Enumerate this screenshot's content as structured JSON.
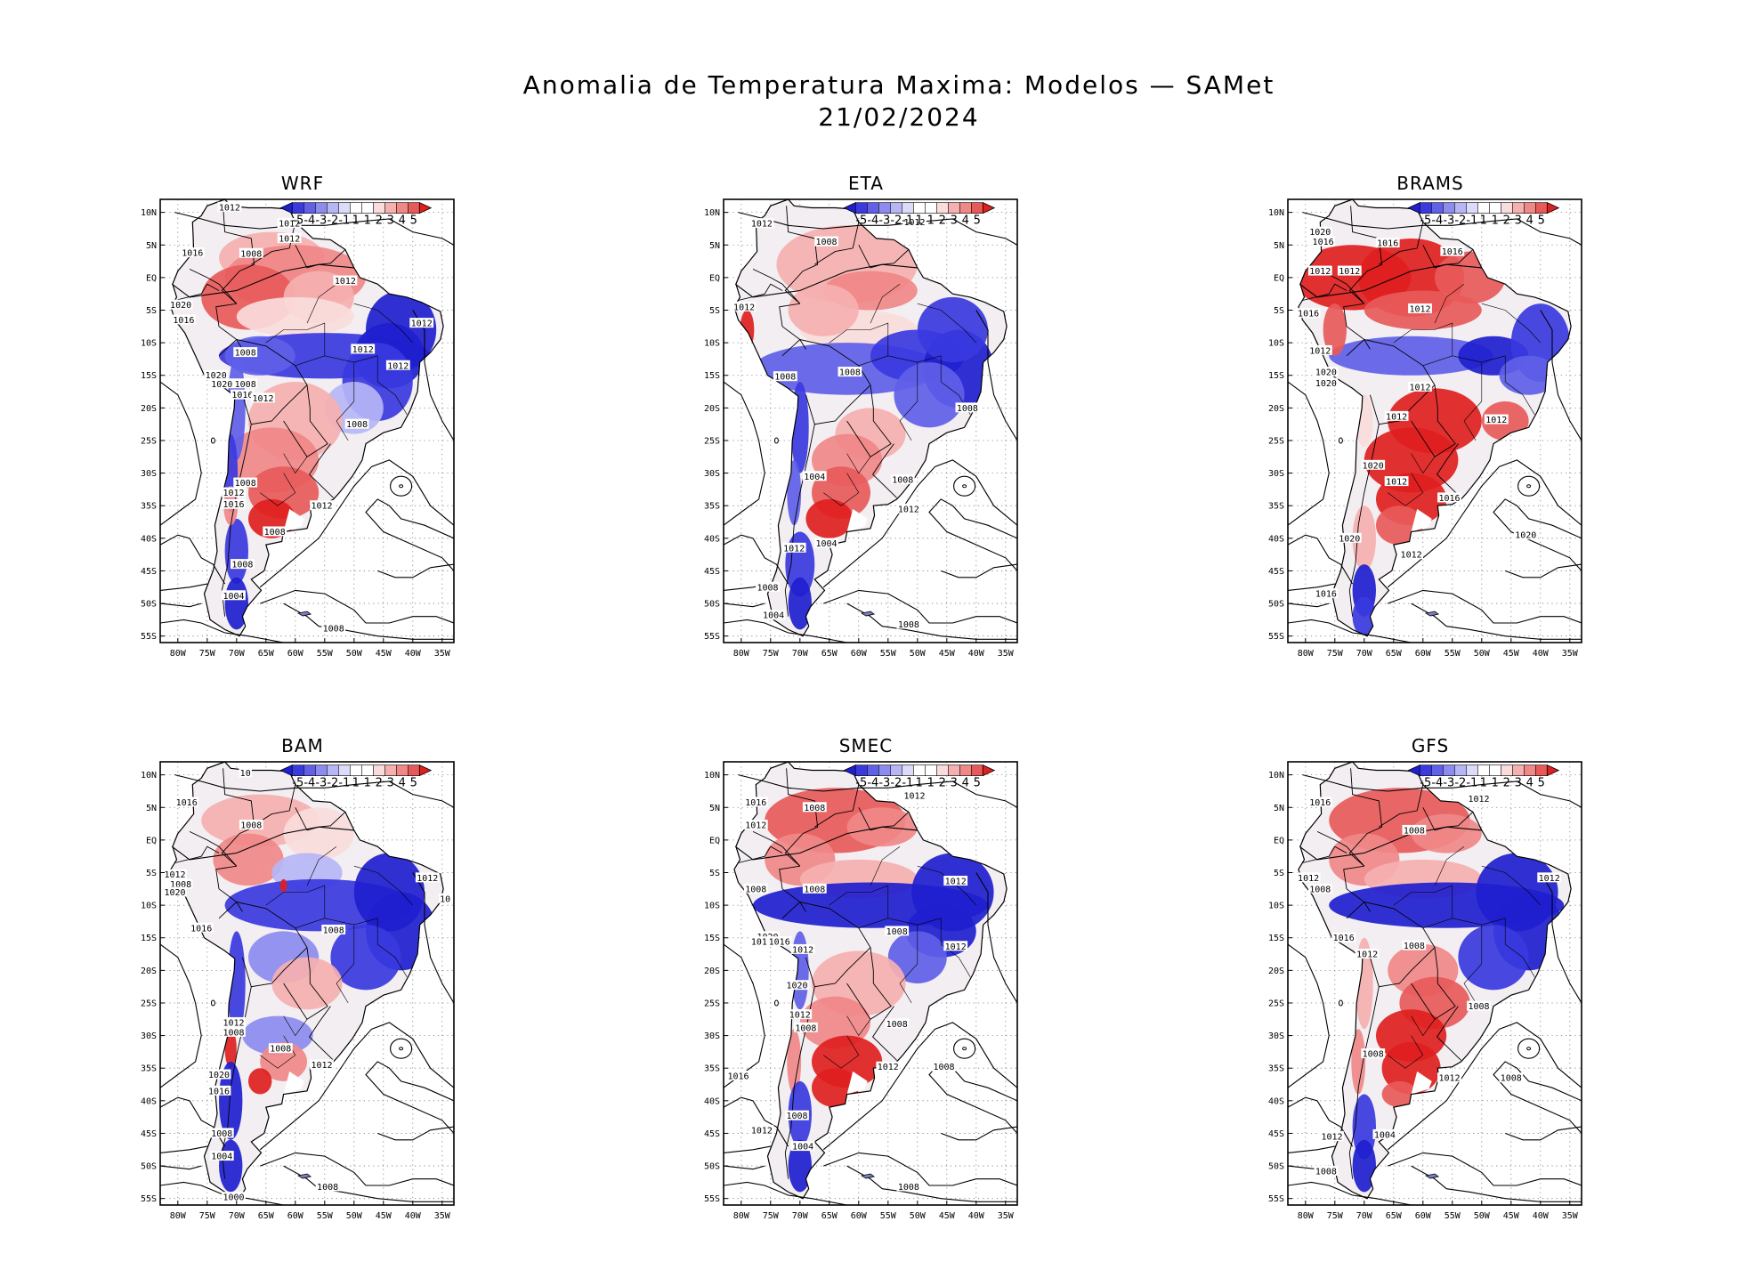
{
  "title": {
    "line1": "Anomalia de Temperatura Maxima: Modelos — SAMet",
    "line2": "21/02/2024"
  },
  "colors": {
    "scale": [
      "#1f1fcf",
      "#3a3ae0",
      "#6060e8",
      "#8c8cf0",
      "#b6b6f6",
      "#dcdcfa",
      "#ffffff",
      "#ffffff",
      "#fadcdc",
      "#f6b0b0",
      "#f08888",
      "#e85a5a",
      "#e02020"
    ],
    "cold": "#1f1fcf",
    "warm": "#e01a1a",
    "land": "#ffffff",
    "line": "#000000"
  },
  "legend": {
    "labels": [
      "-5",
      "-4",
      "-3",
      "-2",
      "-1",
      "1",
      "1",
      "2",
      "3",
      "4",
      "5"
    ]
  },
  "axes": {
    "lat_labels": [
      "10N",
      "5N",
      "EQ",
      "5S",
      "10S",
      "15S",
      "20S",
      "25S",
      "30S",
      "35S",
      "40S",
      "45S",
      "50S",
      "55S"
    ],
    "lon_labels": [
      "80W",
      "75W",
      "70W",
      "65W",
      "60W",
      "55W",
      "50W",
      "45W",
      "40W",
      "35W"
    ]
  },
  "panels": [
    {
      "name": "WRF",
      "isobar_labels": [
        {
          "text": "1012",
          "lon": -71.2,
          "lat": 10.8
        },
        {
          "text": "1012",
          "lon": -61,
          "lat": 8.3
        },
        {
          "text": "1012",
          "lon": -61,
          "lat": 6
        },
        {
          "text": "1016",
          "lon": -77.5,
          "lat": 3.8
        },
        {
          "text": "1008",
          "lon": -67.5,
          "lat": 3.7
        },
        {
          "text": "1012",
          "lon": -51.5,
          "lat": -0.5
        },
        {
          "text": "1020",
          "lon": -79.5,
          "lat": -4.2
        },
        {
          "text": "1016",
          "lon": -79,
          "lat": -6.5
        },
        {
          "text": "1012",
          "lon": -38.5,
          "lat": -7
        },
        {
          "text": "1008",
          "lon": -68.5,
          "lat": -11.5
        },
        {
          "text": "1012",
          "lon": -48.5,
          "lat": -11
        },
        {
          "text": "1012",
          "lon": -42.5,
          "lat": -13.5
        },
        {
          "text": "1020",
          "lon": -73.5,
          "lat": -15
        },
        {
          "text": "1020",
          "lon": -72.5,
          "lat": -16.3
        },
        {
          "text": "1008",
          "lon": -68.5,
          "lat": -16.3
        },
        {
          "text": "1016",
          "lon": -69,
          "lat": -18
        },
        {
          "text": "1012",
          "lon": -65.5,
          "lat": -18.5
        },
        {
          "text": "1008",
          "lon": -49.5,
          "lat": -22.5
        },
        {
          "text": "1008",
          "lon": -68.5,
          "lat": -31.5
        },
        {
          "text": "1012",
          "lon": -70.5,
          "lat": -33
        },
        {
          "text": "1016",
          "lon": -70.5,
          "lat": -34.8
        },
        {
          "text": "1012",
          "lon": -55.5,
          "lat": -35
        },
        {
          "text": "1008",
          "lon": -63.5,
          "lat": -39
        },
        {
          "text": "1008",
          "lon": -69,
          "lat": -44
        },
        {
          "text": "1004",
          "lon": -70.5,
          "lat": -48.8
        },
        {
          "text": "1008",
          "lon": -53.5,
          "lat": -53.8
        }
      ]
    },
    {
      "name": "ETA",
      "isobar_labels": [
        {
          "text": "1012",
          "lon": -76.5,
          "lat": 8.3
        },
        {
          "text": "1012",
          "lon": -50.5,
          "lat": 8.5
        },
        {
          "text": "1008",
          "lon": -65.5,
          "lat": 5.5
        },
        {
          "text": "1012",
          "lon": -79.5,
          "lat": -4.5
        },
        {
          "text": "1008",
          "lon": -72.5,
          "lat": -15.2
        },
        {
          "text": "1008",
          "lon": -61.5,
          "lat": -14.5
        },
        {
          "text": "1008",
          "lon": -41.5,
          "lat": -20
        },
        {
          "text": "1004",
          "lon": -67.5,
          "lat": -30.5
        },
        {
          "text": "1008",
          "lon": -52.5,
          "lat": -31
        },
        {
          "text": "1012",
          "lon": -51.5,
          "lat": -35.5
        },
        {
          "text": "1004",
          "lon": -65.5,
          "lat": -40.8
        },
        {
          "text": "1012",
          "lon": -71,
          "lat": -41.5
        },
        {
          "text": "1008",
          "lon": -75.5,
          "lat": -47.5
        },
        {
          "text": "1004",
          "lon": -74.5,
          "lat": -51.8
        },
        {
          "text": "1008",
          "lon": -51.5,
          "lat": -53.2
        }
      ]
    },
    {
      "name": "BRAMS",
      "isobar_labels": [
        {
          "text": "1020",
          "lon": -77.5,
          "lat": 7
        },
        {
          "text": "1016",
          "lon": -77,
          "lat": 5.5
        },
        {
          "text": "1016",
          "lon": -66,
          "lat": 5.3
        },
        {
          "text": "1016",
          "lon": -55,
          "lat": 4
        },
        {
          "text": "1012",
          "lon": -77.5,
          "lat": 1
        },
        {
          "text": "1012",
          "lon": -72.5,
          "lat": 1
        },
        {
          "text": "1016",
          "lon": -79.5,
          "lat": -5.5
        },
        {
          "text": "1012",
          "lon": -60.5,
          "lat": -4.8
        },
        {
          "text": "1012",
          "lon": -77.5,
          "lat": -11.2
        },
        {
          "text": "1020",
          "lon": -76.5,
          "lat": -14.5
        },
        {
          "text": "1020",
          "lon": -76.5,
          "lat": -16.2
        },
        {
          "text": "1012",
          "lon": -60.5,
          "lat": -16.8
        },
        {
          "text": "1012",
          "lon": -64.5,
          "lat": -21.3
        },
        {
          "text": "1012",
          "lon": -47.5,
          "lat": -21.8
        },
        {
          "text": "1020",
          "lon": -68.5,
          "lat": -28.8
        },
        {
          "text": "1012",
          "lon": -64.5,
          "lat": -31.3
        },
        {
          "text": "1016",
          "lon": -55.5,
          "lat": -33.8
        },
        {
          "text": "1020",
          "lon": -42.5,
          "lat": -39.5
        },
        {
          "text": "1020",
          "lon": -72.5,
          "lat": -40
        },
        {
          "text": "1012",
          "lon": -62,
          "lat": -42.5
        },
        {
          "text": "1016",
          "lon": -76.5,
          "lat": -48.5
        }
      ]
    },
    {
      "name": "BAM",
      "isobar_labels": [
        {
          "text": "10",
          "lon": -68.5,
          "lat": 10.3
        },
        {
          "text": "1016",
          "lon": -78.5,
          "lat": 5.8
        },
        {
          "text": "1008",
          "lon": -67.5,
          "lat": 2.3
        },
        {
          "text": "1012",
          "lon": -80.5,
          "lat": -5.3
        },
        {
          "text": "1008",
          "lon": -79.5,
          "lat": -6.8
        },
        {
          "text": "1020",
          "lon": -80.5,
          "lat": -8
        },
        {
          "text": "1012",
          "lon": -37.5,
          "lat": -5.8
        },
        {
          "text": "10",
          "lon": -34.5,
          "lat": -9
        },
        {
          "text": "1016",
          "lon": -76,
          "lat": -13.5
        },
        {
          "text": "1008",
          "lon": -53.5,
          "lat": -13.8
        },
        {
          "text": "1012",
          "lon": -70.5,
          "lat": -28
        },
        {
          "text": "1008",
          "lon": -70.5,
          "lat": -29.5
        },
        {
          "text": "1008",
          "lon": -62.5,
          "lat": -32
        },
        {
          "text": "1012",
          "lon": -55.5,
          "lat": -34.5
        },
        {
          "text": "1020",
          "lon": -73,
          "lat": -36
        },
        {
          "text": "1016",
          "lon": -73,
          "lat": -38.5
        },
        {
          "text": "1008",
          "lon": -72.5,
          "lat": -45
        },
        {
          "text": "1004",
          "lon": -72.5,
          "lat": -48.5
        },
        {
          "text": "1008",
          "lon": -54.5,
          "lat": -53.2
        },
        {
          "text": "1000",
          "lon": -70.5,
          "lat": -54.8
        }
      ]
    },
    {
      "name": "SMEC",
      "isobar_labels": [
        {
          "text": "1016",
          "lon": -77.5,
          "lat": 5.8
        },
        {
          "text": "1012",
          "lon": -50.5,
          "lat": 6.8
        },
        {
          "text": "1008",
          "lon": -67.5,
          "lat": 5
        },
        {
          "text": "1012",
          "lon": -77.5,
          "lat": 2.3
        },
        {
          "text": "1008",
          "lon": -77.5,
          "lat": -7.5
        },
        {
          "text": "1008",
          "lon": -67.5,
          "lat": -7.5
        },
        {
          "text": "1012",
          "lon": -43.5,
          "lat": -6.3
        },
        {
          "text": "1008",
          "lon": -53.5,
          "lat": -14
        },
        {
          "text": "1012",
          "lon": -43.5,
          "lat": -16.3
        },
        {
          "text": "1020",
          "lon": -75.5,
          "lat": -14.8
        },
        {
          "text": "1016",
          "lon": -76.5,
          "lat": -15.6
        },
        {
          "text": "1016",
          "lon": -73.5,
          "lat": -15.6
        },
        {
          "text": "1012",
          "lon": -69.5,
          "lat": -16.8
        },
        {
          "text": "1020",
          "lon": -70.5,
          "lat": -22.3
        },
        {
          "text": "1012",
          "lon": -70,
          "lat": -26.8
        },
        {
          "text": "1008",
          "lon": -69,
          "lat": -28.8
        },
        {
          "text": "1008",
          "lon": -53.5,
          "lat": -28.2
        },
        {
          "text": "1008",
          "lon": -45.5,
          "lat": -34.8
        },
        {
          "text": "1012",
          "lon": -55,
          "lat": -34.8
        },
        {
          "text": "1016",
          "lon": -80.5,
          "lat": -36.2
        },
        {
          "text": "1008",
          "lon": -70.5,
          "lat": -42.3
        },
        {
          "text": "1012",
          "lon": -76.5,
          "lat": -44.5
        },
        {
          "text": "1004",
          "lon": -69.5,
          "lat": -47
        },
        {
          "text": "1008",
          "lon": -51.5,
          "lat": -53.2
        }
      ]
    },
    {
      "name": "GFS",
      "isobar_labels": [
        {
          "text": "1016",
          "lon": -77.5,
          "lat": 5.8
        },
        {
          "text": "1012",
          "lon": -50.5,
          "lat": 6.3
        },
        {
          "text": "1008",
          "lon": -61.5,
          "lat": 1.5
        },
        {
          "text": "1012",
          "lon": -79.5,
          "lat": -5.8
        },
        {
          "text": "1008",
          "lon": -77.5,
          "lat": -7.5
        },
        {
          "text": "1012",
          "lon": -38.5,
          "lat": -5.8
        },
        {
          "text": "1016",
          "lon": -73.5,
          "lat": -15
        },
        {
          "text": "1008",
          "lon": -61.5,
          "lat": -16.2
        },
        {
          "text": "1012",
          "lon": -69.5,
          "lat": -17.5
        },
        {
          "text": "1008",
          "lon": -50.5,
          "lat": -25.5
        },
        {
          "text": "1008",
          "lon": -68.5,
          "lat": -32.8
        },
        {
          "text": "1012",
          "lon": -55.5,
          "lat": -36.5
        },
        {
          "text": "1008",
          "lon": -45,
          "lat": -36.5
        },
        {
          "text": "1004",
          "lon": -66.5,
          "lat": -45.2
        },
        {
          "text": "1012",
          "lon": -75.5,
          "lat": -45.5
        },
        {
          "text": "1008",
          "lon": -76.5,
          "lat": -50.8
        }
      ]
    }
  ]
}
